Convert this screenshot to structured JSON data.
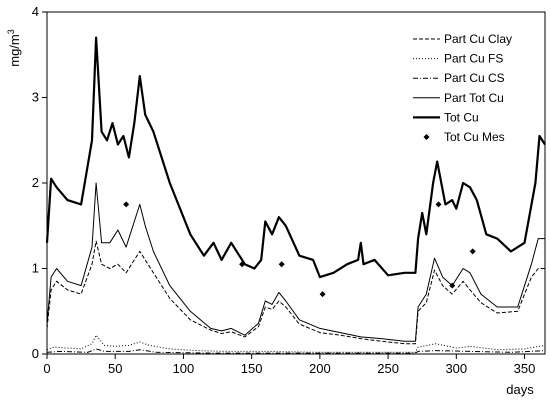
{
  "chart_data": {
    "type": "line",
    "title": "",
    "xlabel": "days",
    "ylabel": "mg/m",
    "ylabel_superscript": "3",
    "xlim": [
      0,
      365
    ],
    "ylim": [
      0,
      4
    ],
    "xticks": [
      "0",
      "50",
      "100",
      "150",
      "200",
      "250",
      "300",
      "350"
    ],
    "yticks": [
      "0",
      "1",
      "2",
      "3",
      "4"
    ],
    "grid": false,
    "legend": "top-right",
    "series": [
      {
        "name": "Part Cu Clay",
        "style": "dashed",
        "width": 1,
        "x": [
          0,
          3,
          7,
          15,
          25,
          33,
          36,
          40,
          46,
          52,
          58,
          64,
          68,
          72,
          78,
          90,
          105,
          120,
          128,
          135,
          145,
          155,
          160,
          165,
          170,
          175,
          185,
          200,
          215,
          230,
          245,
          262,
          270,
          272,
          278,
          284,
          290,
          297,
          305,
          310,
          318,
          330,
          345,
          355,
          360,
          365
        ],
        "y": [
          0.3,
          0.75,
          0.85,
          0.75,
          0.7,
          1.05,
          1.32,
          1.05,
          1.0,
          1.05,
          0.95,
          1.1,
          1.2,
          1.1,
          0.95,
          0.65,
          0.4,
          0.28,
          0.24,
          0.26,
          0.2,
          0.32,
          0.55,
          0.52,
          0.62,
          0.55,
          0.35,
          0.25,
          0.22,
          0.18,
          0.15,
          0.12,
          0.12,
          0.5,
          0.6,
          0.98,
          0.8,
          0.7,
          0.85,
          0.75,
          0.6,
          0.48,
          0.5,
          0.9,
          1.0,
          1.0
        ]
      },
      {
        "name": "Part Cu FS",
        "style": "dotted",
        "width": 1,
        "x": [
          0,
          5,
          15,
          25,
          33,
          36,
          42,
          50,
          60,
          68,
          75,
          90,
          110,
          130,
          160,
          200,
          240,
          270,
          272,
          285,
          300,
          310,
          330,
          350,
          365
        ],
        "y": [
          0.05,
          0.08,
          0.07,
          0.06,
          0.12,
          0.22,
          0.1,
          0.09,
          0.1,
          0.14,
          0.1,
          0.06,
          0.04,
          0.03,
          0.03,
          0.02,
          0.02,
          0.02,
          0.08,
          0.12,
          0.07,
          0.09,
          0.05,
          0.06,
          0.1
        ]
      },
      {
        "name": "Part Cu CS",
        "style": "dashdot",
        "width": 1,
        "x": [
          0,
          10,
          30,
          36,
          42,
          60,
          68,
          80,
          120,
          200,
          270,
          272,
          285,
          310,
          340,
          365
        ],
        "y": [
          0.02,
          0.03,
          0.02,
          0.06,
          0.03,
          0.03,
          0.05,
          0.02,
          0.01,
          0.01,
          0.01,
          0.03,
          0.04,
          0.03,
          0.02,
          0.04
        ]
      },
      {
        "name": "Part Tot Cu",
        "style": "solid",
        "width": 1,
        "x": [
          0,
          3,
          7,
          15,
          25,
          33,
          36,
          40,
          46,
          52,
          58,
          64,
          68,
          72,
          78,
          90,
          105,
          120,
          128,
          135,
          145,
          155,
          160,
          165,
          170,
          175,
          185,
          200,
          215,
          230,
          245,
          262,
          270,
          272,
          278,
          284,
          290,
          297,
          305,
          310,
          318,
          330,
          345,
          355,
          360,
          365
        ],
        "y": [
          0.35,
          0.9,
          1.0,
          0.85,
          0.8,
          1.25,
          2.0,
          1.3,
          1.3,
          1.45,
          1.25,
          1.55,
          1.75,
          1.5,
          1.2,
          0.8,
          0.5,
          0.3,
          0.27,
          0.3,
          0.22,
          0.36,
          0.62,
          0.58,
          0.72,
          0.62,
          0.4,
          0.3,
          0.25,
          0.2,
          0.18,
          0.15,
          0.15,
          0.55,
          0.7,
          1.12,
          0.9,
          0.8,
          1.0,
          0.95,
          0.7,
          0.55,
          0.55,
          1.05,
          1.35,
          1.35
        ]
      },
      {
        "name": "Tot Cu",
        "style": "solid",
        "width": 2.2,
        "x": [
          0,
          3,
          7,
          15,
          25,
          33,
          36,
          40,
          44,
          48,
          52,
          56,
          60,
          64,
          68,
          72,
          78,
          90,
          105,
          115,
          122,
          128,
          135,
          145,
          152,
          157,
          160,
          165,
          170,
          175,
          185,
          195,
          200,
          210,
          220,
          228,
          230,
          232,
          240,
          250,
          262,
          270,
          272,
          275,
          278,
          283,
          286,
          292,
          297,
          300,
          305,
          310,
          315,
          322,
          330,
          340,
          350,
          358,
          361,
          365
        ],
        "y": [
          1.3,
          2.05,
          1.95,
          1.8,
          1.75,
          2.5,
          3.7,
          2.6,
          2.5,
          2.7,
          2.45,
          2.55,
          2.3,
          2.7,
          3.25,
          2.8,
          2.6,
          2.0,
          1.4,
          1.15,
          1.3,
          1.1,
          1.3,
          1.05,
          1.0,
          1.1,
          1.55,
          1.4,
          1.6,
          1.5,
          1.15,
          1.1,
          0.9,
          0.95,
          1.05,
          1.1,
          1.3,
          1.05,
          1.1,
          0.92,
          0.95,
          0.95,
          1.35,
          1.65,
          1.4,
          2.0,
          2.25,
          1.75,
          1.8,
          1.7,
          2.0,
          1.95,
          1.8,
          1.4,
          1.35,
          1.2,
          1.3,
          2.0,
          2.55,
          2.45
        ]
      },
      {
        "name": "Tot Cu Mes",
        "style": "marker",
        "x": [
          58,
          143,
          172,
          202,
          287,
          297,
          312
        ],
        "y": [
          1.75,
          1.05,
          1.05,
          0.7,
          1.75,
          0.8,
          1.2
        ]
      }
    ]
  }
}
